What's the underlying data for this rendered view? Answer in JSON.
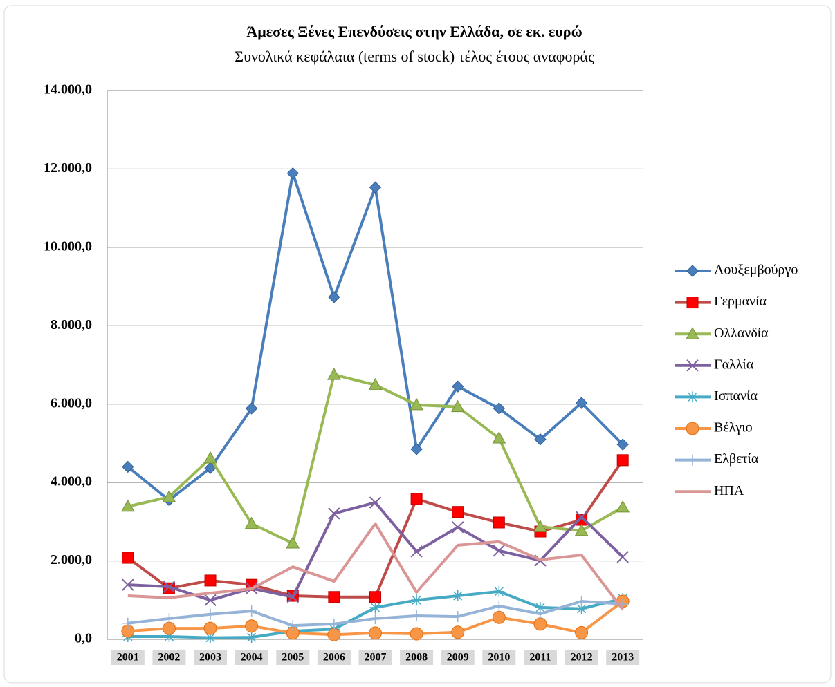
{
  "chart_data": {
    "type": "line",
    "title": "Άμεσες Ξένες Επενδύσεις στην Ελλάδα, σε εκ. ευρώ",
    "subtitle": "Συνολικά κεφάλαια (terms of stock) τέλος έτους αναφοράς",
    "categories": [
      "2001",
      "2002",
      "2003",
      "2004",
      "2005",
      "2006",
      "2007",
      "2008",
      "2009",
      "2010",
      "2011",
      "2012",
      "2013"
    ],
    "ylim": [
      0,
      14000
    ],
    "yticks": [
      {
        "value": 0,
        "label": "0,0"
      },
      {
        "value": 2000,
        "label": "2.000,0"
      },
      {
        "value": 4000,
        "label": "4.000,0"
      },
      {
        "value": 6000,
        "label": "6.000,0"
      },
      {
        "value": 8000,
        "label": "8.000,0"
      },
      {
        "value": 10000,
        "label": "10.000,0"
      },
      {
        "value": 12000,
        "label": "12.000,0"
      },
      {
        "value": 14000,
        "label": "14.000,0"
      }
    ],
    "grid": true,
    "legend": "right",
    "series": [
      {
        "name": "Λουξεμβούργο",
        "color": "#4a7ebb",
        "marker": "diamond",
        "values": [
          4400,
          3550,
          4370,
          5890,
          11890,
          8730,
          11530,
          4850,
          6450,
          5890,
          5100,
          6030,
          4970
        ]
      },
      {
        "name": "Γερμανία",
        "color": "#be4b48",
        "marker": "square",
        "values": [
          2080,
          1300,
          1500,
          1390,
          1110,
          1080,
          1080,
          3580,
          3250,
          2980,
          2750,
          3050,
          4570
        ]
      },
      {
        "name": "Ολλανδία",
        "color": "#98b954",
        "marker": "triangle",
        "values": [
          3390,
          3630,
          4620,
          2950,
          2450,
          6750,
          6490,
          5980,
          5930,
          5130,
          2870,
          2770,
          3370
        ]
      },
      {
        "name": "Γαλλία",
        "color": "#7d60a0",
        "marker": "x",
        "values": [
          1390,
          1340,
          1000,
          1300,
          1080,
          3210,
          3490,
          2240,
          2860,
          2260,
          2010,
          3120,
          2100
        ]
      },
      {
        "name": "Ισπανία",
        "color": "#46aac5",
        "marker": "star",
        "values": [
          70,
          70,
          40,
          50,
          210,
          260,
          810,
          1000,
          1110,
          1220,
          810,
          780,
          1040
        ]
      },
      {
        "name": "Βέλγιο",
        "color": "#f79646",
        "marker": "circle",
        "values": [
          210,
          280,
          280,
          340,
          160,
          120,
          160,
          140,
          180,
          560,
          390,
          170,
          970
        ]
      },
      {
        "name": "Ελβετία",
        "color": "#95b3d7",
        "marker": "plus",
        "values": [
          410,
          530,
          640,
          720,
          350,
          390,
          530,
          600,
          580,
          850,
          650,
          970,
          900
        ]
      },
      {
        "name": "ΗΠΑ",
        "color": "#d99694",
        "marker": "none",
        "values": [
          1110,
          1060,
          1180,
          1290,
          1850,
          1480,
          2950,
          1200,
          2400,
          2490,
          2030,
          2150,
          760
        ]
      }
    ]
  }
}
